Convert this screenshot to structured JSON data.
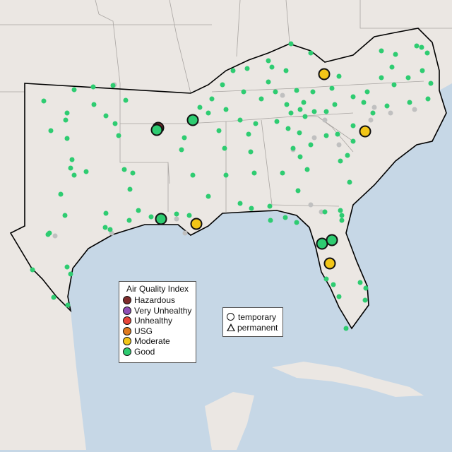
{
  "aqi_legend": {
    "title": "Air Quality Index",
    "items": [
      {
        "label": "Hazardous",
        "color": "#7e2c2c"
      },
      {
        "label": "Very Unhealthy",
        "color": "#8f4fb5"
      },
      {
        "label": "Unhealthy",
        "color": "#e8463a"
      },
      {
        "label": "USG",
        "color": "#e07b1f"
      },
      {
        "label": "Moderate",
        "color": "#f2c618"
      },
      {
        "label": "Good",
        "color": "#2ecc71"
      }
    ]
  },
  "type_legend": {
    "items": [
      {
        "label": "temporary",
        "shape": "circle"
      },
      {
        "label": "permanent",
        "shape": "triangle"
      }
    ]
  },
  "colors": {
    "land": "#ebe7e3",
    "water": "#c6d7e6",
    "no_data": "#c0c0c0",
    "region_outline": "#000000"
  }
}
